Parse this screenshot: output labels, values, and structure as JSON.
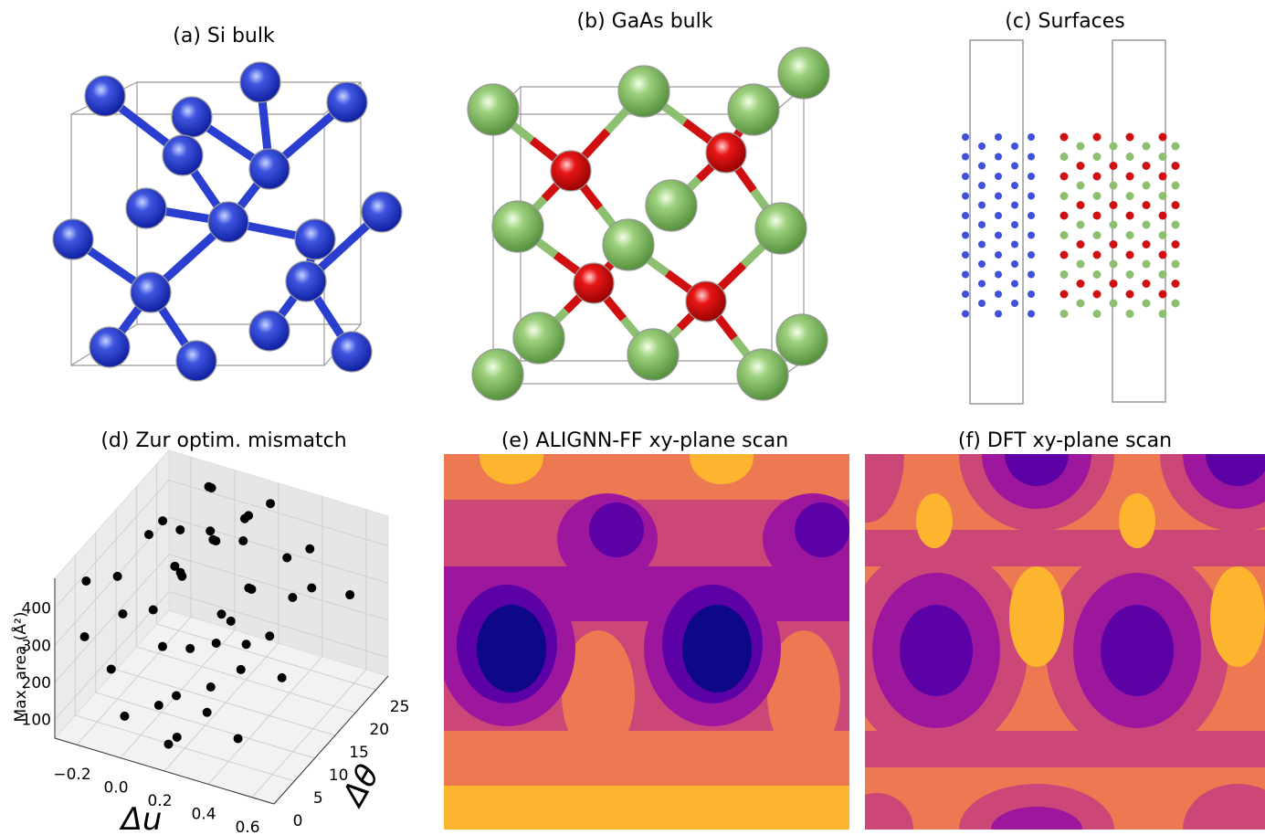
{
  "panels": {
    "a": {
      "title": "(a) Si bulk"
    },
    "b": {
      "title": "(b) GaAs bulk"
    },
    "c": {
      "title": "(c) Surfaces"
    },
    "e": {
      "title": "(e) ALIGNN-FF xy-plane scan"
    },
    "f": {
      "title": "(f) DFT xy-plane scan"
    }
  },
  "chart_data": {
    "type": "scatter3d",
    "title": "(d) Zur optim. mismatch",
    "xlabel": "Δu",
    "ylabel": "Δθ",
    "zlabel": "Max. area (Å²)",
    "color": "#000000",
    "xlim": [
      -0.3,
      0.7
    ],
    "ylim": [
      0,
      28
    ],
    "zlim": [
      50,
      480
    ],
    "xticks": [
      {
        "value": -0.2,
        "label": "−0.2"
      },
      {
        "value": 0,
        "label": "0.0"
      },
      0.2,
      0.4,
      0.6
    ],
    "yticks": [
      0,
      5,
      10,
      15,
      20,
      25
    ],
    "zticks": [
      100,
      200,
      300,
      400
    ],
    "x": [
      -0.25,
      -0.2,
      -0.15,
      -0.1,
      -0.05,
      0.0,
      0.05,
      0.1,
      0.15,
      0.2,
      -0.22,
      -0.12,
      0.02,
      0.12,
      0.25,
      0.3,
      -0.18,
      -0.08,
      0.08,
      0.18,
      0.28,
      0.35,
      0.4,
      0.45,
      -0.1,
      0.0,
      0.1,
      0.2,
      0.3,
      0.5,
      0.55,
      0.6,
      0.22,
      0.32,
      0.42,
      -0.05,
      0.15,
      0.38,
      0.48,
      0.05,
      0.25,
      0.1,
      0.35,
      0.0,
      0.2
    ],
    "y": [
      5,
      10,
      15,
      20,
      25,
      8,
      12,
      18,
      22,
      26,
      3,
      7,
      14,
      24,
      10,
      16,
      20,
      2,
      6,
      4,
      12,
      22,
      8,
      18,
      27,
      1,
      26,
      14,
      6,
      20,
      10,
      24,
      2,
      4,
      14,
      16,
      9,
      26,
      3,
      20,
      18,
      4,
      12,
      22,
      1
    ],
    "z": [
      420,
      380,
      440,
      400,
      460,
      350,
      410,
      430,
      390,
      450,
      300,
      330,
      370,
      420,
      280,
      360,
      410,
      250,
      290,
      200,
      320,
      380,
      260,
      340,
      430,
      150,
      400,
      300,
      220,
      350,
      240,
      300,
      120,
      180,
      280,
      360,
      260,
      360,
      150,
      400,
      330,
      160,
      270,
      390,
      110
    ]
  }
}
